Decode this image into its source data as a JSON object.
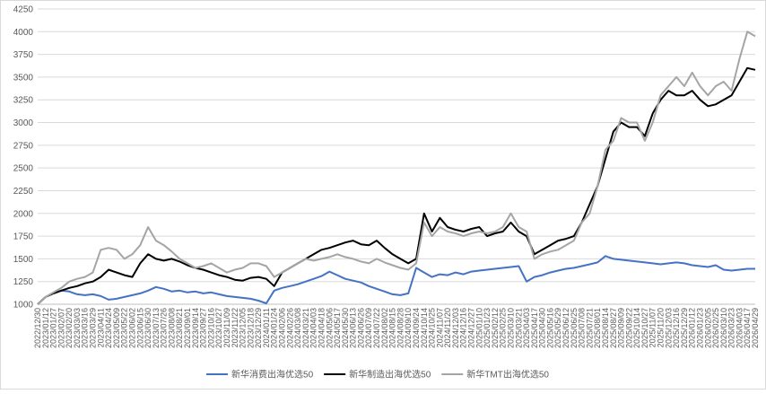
{
  "chart_data": {
    "type": "line",
    "categories": [
      "2022/12/30",
      "2023/01/12",
      "2023/01/27",
      "2023/02/07",
      "2023/02/20",
      "2023/03/03",
      "2023/03/16",
      "2023/03/29",
      "2023/04/11",
      "2023/04/24",
      "2023/05/09",
      "2023/05/22",
      "2023/06/02",
      "2023/06/15",
      "2023/06/30",
      "2023/07/13",
      "2023/07/26",
      "2023/08/08",
      "2023/08/21",
      "2023/09/01",
      "2023/09/14",
      "2023/09/27",
      "2023/10/16",
      "2023/10/27",
      "2023/11/09",
      "2023/11/22",
      "2023/12/05",
      "2023/12/18",
      "2023/12/29",
      "2024/01/11",
      "2024/01/24",
      "2024/02/06",
      "2024/02/26",
      "2024/03/08",
      "2024/03/21",
      "2024/04/03",
      "2024/04/18",
      "2024/05/06",
      "2024/05/17",
      "2024/05/30",
      "2024/06/13",
      "2024/06/26",
      "2024/07/09",
      "2024/07/22",
      "2024/08/02",
      "2024/08/15",
      "2024/08/28",
      "2024/09/10",
      "2024/09/24",
      "2024/10/14",
      "2024/10/25",
      "2024/11/07",
      "2024/11/20",
      "2024/12/03",
      "2024/12/16",
      "2024/12/27",
      "2025/01/10",
      "2025/01/23",
      "2025/02/12",
      "2025/02/25",
      "2025/03/10",
      "2025/03/21",
      "2025/04/03",
      "2025/04/17",
      "2025/04/30",
      "2025/05/16",
      "2025/05/29",
      "2025/06/12",
      "2025/06/25",
      "2025/07/08",
      "2025/07/21",
      "2025/08/01",
      "2025/08/14",
      "2025/08/27",
      "2025/09/09",
      "2025/09/22",
      "2025/10/14",
      "2025/10/27",
      "2025/11/07",
      "2025/11/20",
      "2025/12/03",
      "2025/12/16",
      "2025/12/29",
      "2026/01/12",
      "2026/01/23",
      "2026/02/05",
      "2026/02/25",
      "2026/03/10",
      "2026/03/23",
      "2026/04/03",
      "2026/04/17",
      "2026/04/29"
    ],
    "series": [
      {
        "name": "新华消费出海优选50",
        "color": "#4472c4",
        "values": [
          1000,
          1080,
          1120,
          1150,
          1140,
          1110,
          1100,
          1110,
          1090,
          1050,
          1060,
          1080,
          1100,
          1120,
          1150,
          1190,
          1170,
          1140,
          1150,
          1130,
          1140,
          1120,
          1130,
          1110,
          1090,
          1080,
          1070,
          1060,
          1040,
          1010,
          1150,
          1180,
          1200,
          1220,
          1250,
          1280,
          1310,
          1360,
          1320,
          1280,
          1260,
          1240,
          1200,
          1170,
          1140,
          1110,
          1100,
          1120,
          1400,
          1350,
          1300,
          1330,
          1320,
          1350,
          1330,
          1360,
          1370,
          1380,
          1390,
          1400,
          1410,
          1420,
          1250,
          1300,
          1320,
          1350,
          1370,
          1390,
          1400,
          1420,
          1440,
          1460,
          1530,
          1500,
          1490,
          1480,
          1470,
          1460,
          1450,
          1440,
          1450,
          1460,
          1450,
          1430,
          1420,
          1410,
          1430,
          1380,
          1370,
          1380,
          1390,
          1390
        ]
      },
      {
        "name": "新华制造出海优选50",
        "color": "#000000",
        "values": [
          1000,
          1080,
          1120,
          1150,
          1180,
          1200,
          1230,
          1250,
          1300,
          1380,
          1350,
          1320,
          1300,
          1450,
          1550,
          1500,
          1480,
          1500,
          1470,
          1430,
          1400,
          1380,
          1350,
          1320,
          1300,
          1270,
          1260,
          1290,
          1300,
          1280,
          1200,
          1350,
          1400,
          1450,
          1500,
          1550,
          1600,
          1620,
          1650,
          1680,
          1700,
          1660,
          1650,
          1700,
          1620,
          1550,
          1500,
          1450,
          1500,
          2000,
          1800,
          1950,
          1850,
          1820,
          1800,
          1830,
          1850,
          1750,
          1780,
          1800,
          1900,
          1800,
          1750,
          1550,
          1600,
          1650,
          1700,
          1720,
          1750,
          1900,
          2100,
          2300,
          2600,
          2900,
          3000,
          2950,
          2950,
          2850,
          3100,
          3250,
          3350,
          3300,
          3300,
          3350,
          3250,
          3180,
          3200,
          3250,
          3300,
          3450,
          3600,
          3580
        ]
      },
      {
        "name": "新华TMT出海优选50",
        "color": "#a5a5a5",
        "values": [
          1000,
          1080,
          1130,
          1180,
          1250,
          1280,
          1300,
          1350,
          1600,
          1620,
          1600,
          1500,
          1550,
          1650,
          1850,
          1700,
          1650,
          1580,
          1500,
          1450,
          1400,
          1420,
          1450,
          1400,
          1350,
          1380,
          1400,
          1450,
          1450,
          1420,
          1300,
          1350,
          1400,
          1450,
          1500,
          1480,
          1500,
          1520,
          1550,
          1520,
          1500,
          1470,
          1450,
          1500,
          1460,
          1430,
          1400,
          1380,
          1450,
          1900,
          1750,
          1850,
          1800,
          1780,
          1750,
          1780,
          1800,
          1780,
          1800,
          1850,
          2000,
          1850,
          1800,
          1500,
          1550,
          1580,
          1600,
          1650,
          1700,
          1900,
          2000,
          2300,
          2700,
          2800,
          3050,
          3000,
          3000,
          2800,
          3000,
          3300,
          3400,
          3500,
          3400,
          3550,
          3400,
          3300,
          3400,
          3450,
          3350,
          3700,
          4000,
          3950
        ]
      }
    ],
    "ylim": [
      1000,
      4250
    ],
    "yticks": [
      1000,
      1250,
      1500,
      1750,
      2000,
      2250,
      2500,
      2750,
      3000,
      3250,
      3500,
      3750,
      4000,
      4250
    ],
    "grid": true,
    "legend": "bottom"
  }
}
